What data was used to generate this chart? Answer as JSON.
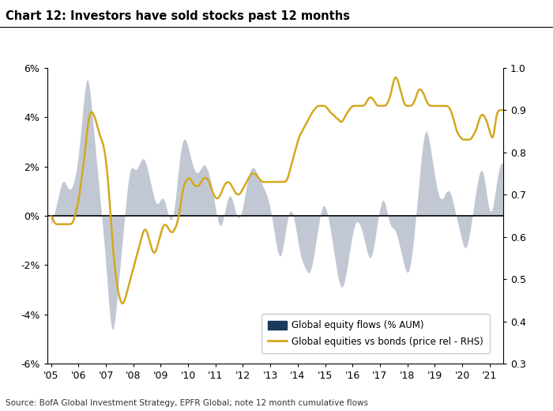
{
  "title": "Chart 12: Investors have sold stocks past 12 months",
  "source": "Source: BofA Global Investment Strategy, EPFR Global; note 12 month cumulative flows",
  "ylim_left": [
    -6,
    6
  ],
  "ylim_right": [
    0.3,
    1.0
  ],
  "yticks_left": [
    -6,
    -4,
    -2,
    0,
    2,
    4,
    6
  ],
  "yticks_left_labels": [
    "-6%",
    "-4%",
    "-2%",
    "0%",
    "2%",
    "4%",
    "6%"
  ],
  "yticks_right": [
    0.3,
    0.4,
    0.5,
    0.6,
    0.7,
    0.8,
    0.9,
    1.0
  ],
  "fill_color": "#b8bfcc",
  "line_color": "#d4a820",
  "bar_color": "#1a3a5c",
  "background_color": "#ffffff",
  "legend_eq_flows": "Global equity flows (% AUM)",
  "legend_eq_bonds": "Global equities vs bonds (price rel - RHS)",
  "equity_flows": [
    -0.5,
    -0.3,
    -0.1,
    0.1,
    0.3,
    0.5,
    0.7,
    0.9,
    1.1,
    1.3,
    1.5,
    1.5,
    1.4,
    1.3,
    1.2,
    1.1,
    1.0,
    1.0,
    1.1,
    1.2,
    1.3,
    1.5,
    1.7,
    2.0,
    2.3,
    2.8,
    3.3,
    3.8,
    4.3,
    4.8,
    5.3,
    5.7,
    5.8,
    5.6,
    5.3,
    4.8,
    4.3,
    3.8,
    3.3,
    2.8,
    2.3,
    1.8,
    1.3,
    0.8,
    0.3,
    -0.2,
    -0.7,
    -1.2,
    -1.7,
    -2.3,
    -3.0,
    -3.7,
    -4.3,
    -4.7,
    -4.9,
    -4.8,
    -4.5,
    -4.0,
    -3.5,
    -3.0,
    -2.5,
    -2.0,
    -1.5,
    -1.0,
    -0.5,
    0.0,
    0.5,
    1.0,
    1.5,
    1.8,
    2.0,
    2.1,
    2.0,
    1.9,
    1.8,
    1.8,
    1.9,
    2.0,
    2.1,
    2.2,
    2.3,
    2.4,
    2.4,
    2.3,
    2.1,
    1.9,
    1.7,
    1.5,
    1.3,
    1.1,
    0.9,
    0.7,
    0.5,
    0.4,
    0.4,
    0.5,
    0.6,
    0.7,
    0.8,
    0.8,
    0.7,
    0.5,
    0.3,
    0.1,
    -0.1,
    -0.3,
    -0.3,
    -0.2,
    0.0,
    0.3,
    0.7,
    1.2,
    1.7,
    2.2,
    2.6,
    2.9,
    3.1,
    3.2,
    3.2,
    3.1,
    3.0,
    2.8,
    2.6,
    2.4,
    2.2,
    2.0,
    1.9,
    1.8,
    1.7,
    1.7,
    1.7,
    1.8,
    1.9,
    2.0,
    2.1,
    2.1,
    2.1,
    2.0,
    1.9,
    1.8,
    1.6,
    1.4,
    1.2,
    0.9,
    0.6,
    0.3,
    0.0,
    -0.2,
    -0.4,
    -0.5,
    -0.5,
    -0.4,
    -0.2,
    0.1,
    0.3,
    0.6,
    0.8,
    0.9,
    0.9,
    0.8,
    0.7,
    0.5,
    0.3,
    0.1,
    -0.1,
    -0.2,
    -0.2,
    -0.1,
    0.1,
    0.3,
    0.5,
    0.8,
    1.1,
    1.4,
    1.6,
    1.8,
    1.9,
    2.0,
    2.0,
    2.0,
    1.9,
    1.8,
    1.7,
    1.6,
    1.5,
    1.4,
    1.3,
    1.2,
    1.1,
    1.0,
    0.9,
    0.8,
    0.6,
    0.4,
    0.2,
    -0.1,
    -0.4,
    -0.7,
    -1.0,
    -1.3,
    -1.5,
    -1.7,
    -1.8,
    -1.7,
    -1.5,
    -1.2,
    -0.9,
    -0.6,
    -0.3,
    0.0,
    0.2,
    0.3,
    0.3,
    0.2,
    0.0,
    -0.2,
    -0.5,
    -0.8,
    -1.1,
    -1.4,
    -1.6,
    -1.8,
    -1.9,
    -2.0,
    -2.1,
    -2.2,
    -2.3,
    -2.4,
    -2.4,
    -2.3,
    -2.1,
    -1.9,
    -1.6,
    -1.3,
    -1.0,
    -0.7,
    -0.4,
    -0.1,
    0.2,
    0.4,
    0.5,
    0.5,
    0.4,
    0.3,
    0.1,
    -0.1,
    -0.4,
    -0.7,
    -1.0,
    -1.3,
    -1.6,
    -1.9,
    -2.2,
    -2.5,
    -2.7,
    -2.9,
    -3.0,
    -3.0,
    -2.9,
    -2.7,
    -2.5,
    -2.2,
    -1.9,
    -1.6,
    -1.3,
    -1.0,
    -0.7,
    -0.5,
    -0.3,
    -0.2,
    -0.2,
    -0.2,
    -0.3,
    -0.4,
    -0.5,
    -0.7,
    -0.9,
    -1.1,
    -1.3,
    -1.5,
    -1.7,
    -1.8,
    -1.8,
    -1.7,
    -1.5,
    -1.2,
    -0.9,
    -0.6,
    -0.3,
    0.0,
    0.3,
    0.5,
    0.7,
    0.8,
    0.7,
    0.5,
    0.3,
    0.0,
    -0.2,
    -0.4,
    -0.5,
    -0.5,
    -0.5,
    -0.5,
    -0.6,
    -0.7,
    -0.9,
    -1.1,
    -1.3,
    -1.5,
    -1.7,
    -1.9,
    -2.1,
    -2.3,
    -2.4,
    -2.4,
    -2.3,
    -2.1,
    -1.8,
    -1.4,
    -1.0,
    -0.5,
    0.0,
    0.5,
    1.0,
    1.5,
    2.0,
    2.5,
    3.0,
    3.3,
    3.5,
    3.6,
    3.5,
    3.3,
    3.0,
    2.7,
    2.4,
    2.1,
    1.8,
    1.5,
    1.2,
    1.0,
    0.8,
    0.7,
    0.6,
    0.6,
    0.7,
    0.8,
    0.9,
    1.0,
    1.1,
    1.1,
    1.0,
    0.9,
    0.7,
    0.5,
    0.3,
    0.1,
    -0.1,
    -0.3,
    -0.5,
    -0.7,
    -0.9,
    -1.1,
    -1.3,
    -1.4,
    -1.4,
    -1.3,
    -1.1,
    -0.9,
    -0.6,
    -0.3,
    0.1,
    0.4,
    0.7,
    1.0,
    1.3,
    1.6,
    1.8,
    1.9,
    2.0,
    1.9,
    1.7,
    1.4,
    1.0,
    0.6,
    0.3,
    0.1,
    0.0,
    0.1,
    0.3,
    0.6,
    1.0,
    1.3,
    1.6,
    1.9,
    2.1,
    2.2,
    2.2,
    2.1
  ],
  "equities_vs_bonds": [
    0.65,
    0.65,
    0.64,
    0.63,
    0.63,
    0.63,
    0.63,
    0.63,
    0.63,
    0.63,
    0.63,
    0.63,
    0.63,
    0.63,
    0.63,
    0.63,
    0.63,
    0.63,
    0.63,
    0.63,
    0.64,
    0.65,
    0.66,
    0.67,
    0.68,
    0.7,
    0.72,
    0.74,
    0.76,
    0.78,
    0.8,
    0.83,
    0.86,
    0.88,
    0.89,
    0.9,
    0.9,
    0.89,
    0.89,
    0.88,
    0.87,
    0.86,
    0.85,
    0.84,
    0.83,
    0.83,
    0.82,
    0.81,
    0.79,
    0.77,
    0.74,
    0.71,
    0.67,
    0.63,
    0.59,
    0.56,
    0.53,
    0.51,
    0.49,
    0.47,
    0.46,
    0.45,
    0.44,
    0.44,
    0.44,
    0.45,
    0.46,
    0.47,
    0.48,
    0.49,
    0.5,
    0.51,
    0.52,
    0.53,
    0.54,
    0.55,
    0.56,
    0.57,
    0.58,
    0.59,
    0.6,
    0.61,
    0.62,
    0.62,
    0.62,
    0.61,
    0.6,
    0.59,
    0.58,
    0.57,
    0.56,
    0.56,
    0.56,
    0.57,
    0.58,
    0.59,
    0.6,
    0.61,
    0.62,
    0.63,
    0.63,
    0.63,
    0.63,
    0.62,
    0.62,
    0.61,
    0.61,
    0.61,
    0.61,
    0.62,
    0.62,
    0.63,
    0.64,
    0.65,
    0.67,
    0.69,
    0.71,
    0.72,
    0.73,
    0.73,
    0.74,
    0.74,
    0.74,
    0.74,
    0.73,
    0.73,
    0.72,
    0.72,
    0.72,
    0.72,
    0.72,
    0.72,
    0.73,
    0.73,
    0.74,
    0.74,
    0.74,
    0.74,
    0.74,
    0.73,
    0.73,
    0.72,
    0.71,
    0.7,
    0.7,
    0.69,
    0.69,
    0.69,
    0.69,
    0.7,
    0.7,
    0.71,
    0.72,
    0.72,
    0.73,
    0.73,
    0.73,
    0.73,
    0.73,
    0.72,
    0.72,
    0.71,
    0.71,
    0.7,
    0.7,
    0.7,
    0.7,
    0.7,
    0.71,
    0.71,
    0.72,
    0.72,
    0.73,
    0.73,
    0.74,
    0.74,
    0.75,
    0.75,
    0.75,
    0.75,
    0.75,
    0.75,
    0.74,
    0.74,
    0.74,
    0.73,
    0.73,
    0.73,
    0.73,
    0.73,
    0.73,
    0.73,
    0.73,
    0.73,
    0.73,
    0.73,
    0.73,
    0.73,
    0.73,
    0.73,
    0.73,
    0.73,
    0.73,
    0.73,
    0.73,
    0.73,
    0.73,
    0.73,
    0.73,
    0.74,
    0.75,
    0.76,
    0.77,
    0.78,
    0.79,
    0.8,
    0.81,
    0.82,
    0.83,
    0.84,
    0.84,
    0.85,
    0.85,
    0.86,
    0.86,
    0.87,
    0.87,
    0.88,
    0.88,
    0.89,
    0.89,
    0.9,
    0.9,
    0.9,
    0.91,
    0.91,
    0.91,
    0.91,
    0.91,
    0.91,
    0.91,
    0.91,
    0.91,
    0.91,
    0.9,
    0.9,
    0.9,
    0.89,
    0.89,
    0.89,
    0.89,
    0.88,
    0.88,
    0.88,
    0.88,
    0.87,
    0.87,
    0.87,
    0.88,
    0.88,
    0.89,
    0.89,
    0.9,
    0.9,
    0.9,
    0.91,
    0.91,
    0.91,
    0.91,
    0.91,
    0.91,
    0.91,
    0.91,
    0.91,
    0.91,
    0.91,
    0.91,
    0.91,
    0.92,
    0.92,
    0.93,
    0.93,
    0.93,
    0.93,
    0.93,
    0.92,
    0.92,
    0.91,
    0.91,
    0.91,
    0.91,
    0.91,
    0.91,
    0.91,
    0.91,
    0.91,
    0.91,
    0.92,
    0.92,
    0.93,
    0.94,
    0.95,
    0.97,
    0.98,
    0.98,
    0.98,
    0.97,
    0.96,
    0.95,
    0.94,
    0.93,
    0.92,
    0.91,
    0.91,
    0.91,
    0.91,
    0.91,
    0.91,
    0.91,
    0.91,
    0.92,
    0.92,
    0.93,
    0.94,
    0.95,
    0.95,
    0.95,
    0.95,
    0.94,
    0.94,
    0.93,
    0.92,
    0.92,
    0.91,
    0.91,
    0.91,
    0.91,
    0.91,
    0.91,
    0.91,
    0.91,
    0.91,
    0.91,
    0.91,
    0.91,
    0.91,
    0.91,
    0.91,
    0.91,
    0.91,
    0.91,
    0.91,
    0.9,
    0.9,
    0.89,
    0.88,
    0.87,
    0.86,
    0.85,
    0.84,
    0.84,
    0.84,
    0.83,
    0.83,
    0.83,
    0.83,
    0.83,
    0.83,
    0.83,
    0.83,
    0.83,
    0.83,
    0.84,
    0.84,
    0.85,
    0.85,
    0.86,
    0.87,
    0.88,
    0.89,
    0.89,
    0.89,
    0.89,
    0.88,
    0.88,
    0.87,
    0.86,
    0.85,
    0.84,
    0.83,
    0.83,
    0.83,
    0.88,
    0.89,
    0.9,
    0.9,
    0.9,
    0.9,
    0.9,
    0.9
  ]
}
